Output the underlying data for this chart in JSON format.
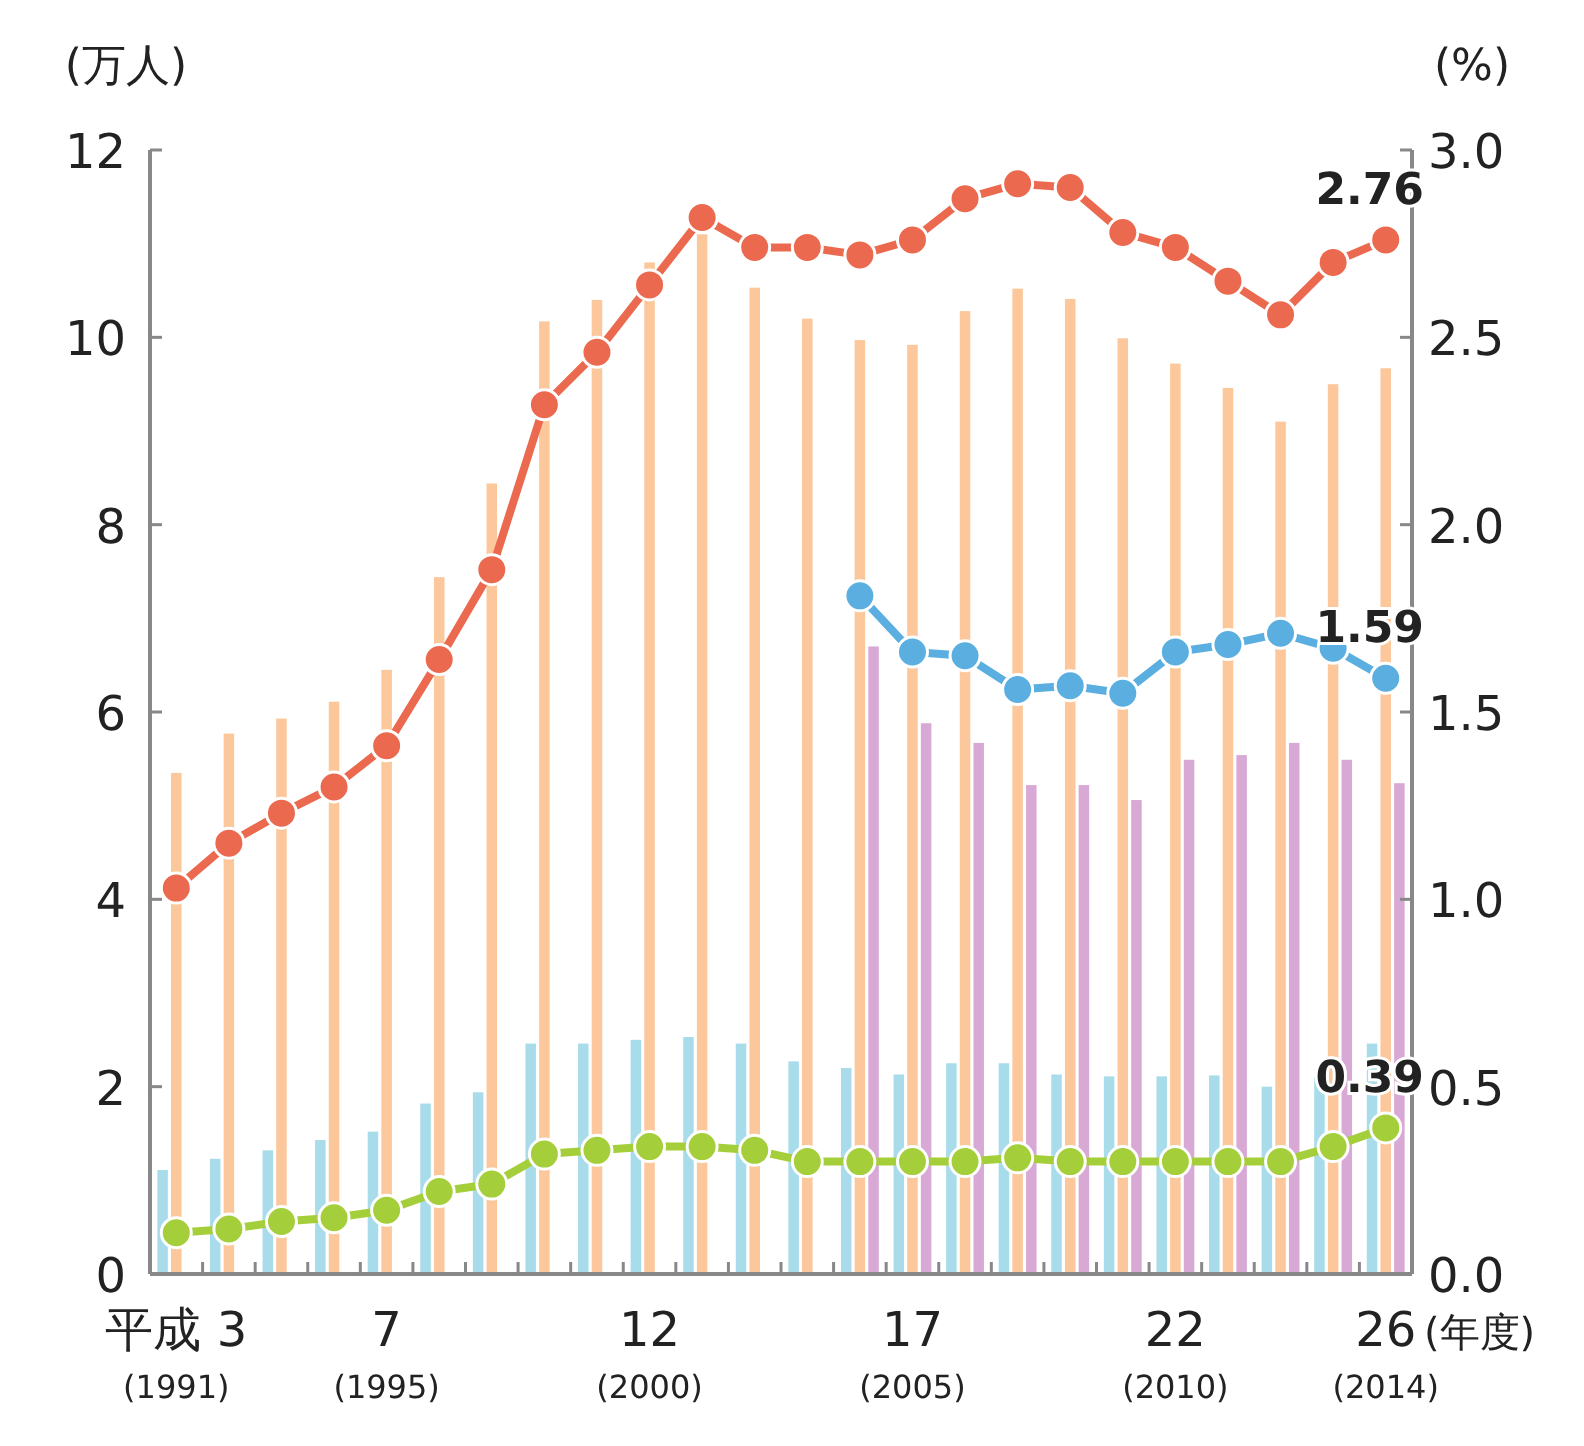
{
  "chart_data": {
    "type": "bar",
    "ylabel": "(万人)",
    "y2label": "(%)",
    "xlabel": "(年度)",
    "categories": [
      "平成 3\n$_{(1991)}$",
      null,
      null,
      null,
      "7\n$_{(1995)}$",
      null,
      null,
      null,
      null,
      "12\n$_{(2000)}$",
      null,
      null,
      null,
      null,
      "17\n$_{(2005)}$",
      null,
      null,
      null,
      null,
      "22\n$_{(2010)}$",
      null,
      null,
      null,
      "26\n$_{(2014)}$"
    ],
    "ylim": [
      0,
      12
    ],
    "yticks": [
      0,
      2,
      4,
      6,
      8,
      10,
      12
    ],
    "y2lim": [
      0,
      3
    ],
    "y2ticks": [
      {
        "value": 0,
        "label": "0.0"
      },
      {
        "value": 0.5,
        "label": "0.5"
      },
      {
        "value": 1,
        "label": "1.0"
      },
      {
        "value": 1.5,
        "label": "1.5"
      },
      {
        "value": 2,
        "label": "2.0"
      },
      {
        "value": 2.5,
        "label": "2.5"
      },
      {
        "value": 3,
        "label": "3.0"
      }
    ],
    "grid": false,
    "marker": "circle",
    "line_style": "solid",
    "series": [
      {
        "color": "#a8dcea",
        "values": [
          1.11,
          1.23,
          1.32,
          1.43,
          1.52,
          1.82,
          1.94,
          2.46,
          2.46,
          2.5,
          2.53,
          2.46,
          2.27,
          2.2,
          2.13,
          2.25,
          2.25,
          2.13,
          2.11,
          2.11,
          2.12,
          2.0,
          2.1,
          2.46
        ]
      },
      {
        "color": "#fcc89b",
        "values": [
          5.35,
          5.77,
          5.93,
          6.11,
          6.45,
          7.44,
          8.44,
          10.17,
          10.4,
          10.8,
          11.1,
          10.53,
          10.2,
          9.97,
          9.92,
          10.28,
          10.52,
          10.41,
          9.99,
          9.72,
          9.46,
          9.1,
          9.5,
          9.67
        ]
      },
      {
        "color": "#d9a9d6",
        "values": [
          null,
          null,
          null,
          null,
          null,
          null,
          null,
          null,
          null,
          null,
          null,
          null,
          null,
          6.7,
          5.88,
          5.67,
          5.22,
          5.22,
          5.06,
          5.49,
          5.54,
          5.67,
          5.49,
          5.24
        ]
      },
      {
        "type": "line",
        "axis": "y2",
        "color": "#eb6a4f",
        "values": [
          1.03,
          1.15,
          1.23,
          1.3,
          1.41,
          1.64,
          1.88,
          2.32,
          2.46,
          2.64,
          2.82,
          2.74,
          2.74,
          2.72,
          2.76,
          2.87,
          2.91,
          2.9,
          2.78,
          2.74,
          2.65,
          2.56,
          2.7,
          2.76
        ]
      },
      {
        "type": "line",
        "axis": "y2",
        "color": "#5aaee0",
        "values": [
          null,
          null,
          null,
          null,
          null,
          null,
          null,
          null,
          null,
          null,
          null,
          null,
          null,
          1.81,
          1.66,
          1.65,
          1.56,
          1.57,
          1.55,
          1.66,
          1.68,
          1.71,
          1.67,
          1.59
        ]
      },
      {
        "type": "line",
        "axis": "y2",
        "color": "#a5cf3a",
        "values": [
          0.11,
          0.12,
          0.14,
          0.15,
          0.17,
          0.22,
          0.24,
          0.32,
          0.33,
          0.34,
          0.34,
          0.33,
          0.3,
          0.3,
          0.3,
          0.3,
          0.31,
          0.3,
          0.3,
          0.3,
          0.3,
          0.3,
          0.34,
          0.39
        ]
      }
    ],
    "annotations": [
      "2.76",
      "1.59",
      "0.39"
    ]
  }
}
